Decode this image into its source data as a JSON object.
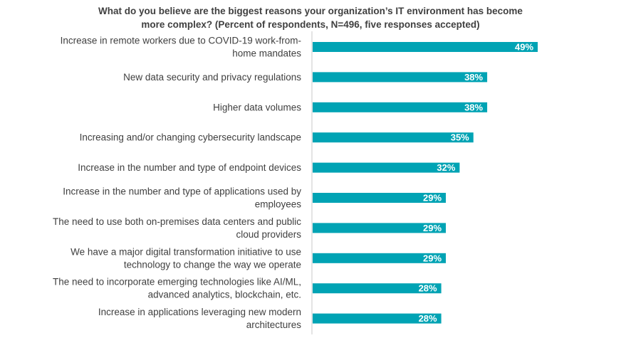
{
  "chart_data": {
    "type": "bar",
    "orientation": "horizontal",
    "title_lines": [
      "What do you believe are the biggest reasons your organization’s IT environment has become",
      "more complex? (Percent of respondents, N=496, five responses accepted)"
    ],
    "categories": [
      [
        "Increase in remote workers due to COVID-19 work-from-",
        "home mandates"
      ],
      [
        "New data security and privacy regulations"
      ],
      [
        "Higher data volumes"
      ],
      [
        "Increasing and/or changing cybersecurity landscape"
      ],
      [
        "Increase in the number and type of endpoint devices"
      ],
      [
        "Increase in the number and type of applications used by",
        "employees"
      ],
      [
        "The need to use both on-premises data centers and public",
        "cloud providers"
      ],
      [
        "We have a major digital transformation initiative to use",
        "technology to change the way we operate"
      ],
      [
        "The need to incorporate emerging technologies like AI/ML,",
        "advanced analytics, blockchain, etc."
      ],
      [
        "Increase in applications leveraging new modern",
        "architectures"
      ]
    ],
    "values": [
      49,
      38,
      38,
      35,
      32,
      29,
      29,
      29,
      28,
      28
    ],
    "value_labels": [
      "49%",
      "38%",
      "38%",
      "35%",
      "32%",
      "29%",
      "29%",
      "29%",
      "28%",
      "28%"
    ],
    "xlim": [
      0,
      100
    ],
    "grid": false,
    "legend": "none",
    "bar_color": "#00a3b4",
    "axis_color": "#c8c8c8"
  }
}
